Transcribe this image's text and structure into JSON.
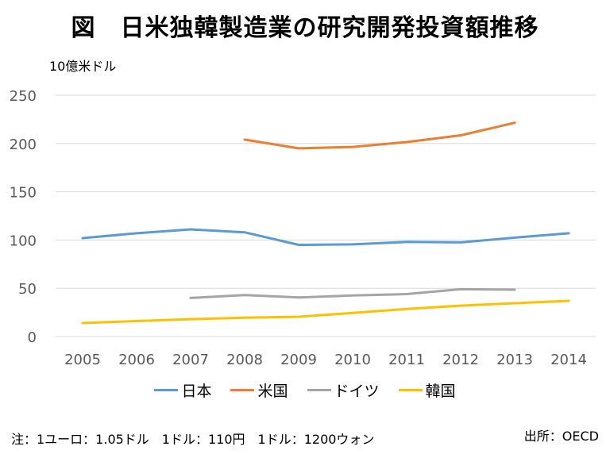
{
  "title": "図　日米独韓製造業の研究開発投資額推移",
  "unit": "10億米ドル",
  "note": "注：1ユーロ：1.05ドル　1ドル：110円　1ドル：1200ウォン",
  "source": "出所：OECD",
  "colors": {
    "japan": "#5B9BD5",
    "usa": "#ED7D31",
    "germany": "#A5A5A5",
    "korea": "#FFC000",
    "grid": "#D9D9D9"
  },
  "chart_data": {
    "type": "line",
    "title": "図　日米独韓製造業の研究開発投資額推移",
    "ylabel": "10億米ドル",
    "xlabel": "",
    "categories": [
      "2005",
      "2006",
      "2007",
      "2008",
      "2009",
      "2010",
      "2011",
      "2012",
      "2013",
      "2014"
    ],
    "ylim": [
      0,
      250
    ],
    "yticks": [
      "0",
      "50",
      "100",
      "150",
      "200",
      "250"
    ],
    "grid": true,
    "legend_position": "bottom",
    "series": [
      {
        "name": "日本",
        "color": "#5B9BD5",
        "values": [
          102,
          107,
          111,
          108,
          95,
          95.5,
          98,
          97.5,
          102.5,
          107
        ]
      },
      {
        "name": "米国",
        "color": "#ED7D31",
        "values": [
          null,
          null,
          null,
          204,
          195,
          196.5,
          201.5,
          208.5,
          221.5,
          null
        ]
      },
      {
        "name": "ドイツ",
        "color": "#A5A5A5",
        "values": [
          null,
          null,
          40,
          43,
          40.5,
          42.5,
          44,
          49,
          48.5,
          null
        ]
      },
      {
        "name": "韓国",
        "color": "#FFC000",
        "values": [
          14,
          16,
          18,
          19.5,
          20.5,
          24.5,
          28.5,
          32,
          34.5,
          37
        ]
      }
    ]
  }
}
